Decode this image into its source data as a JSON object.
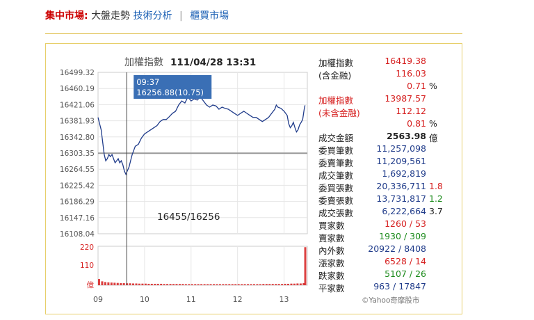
{
  "topbar": {
    "market": "集中市場:",
    "item1": "大盤走勢",
    "item2": "技術分析",
    "sep": "|",
    "item3": "櫃買市場"
  },
  "colors": {
    "red": "#d61f1f",
    "green": "#1a8a1a",
    "blue": "#1f3b8a",
    "line": "#1f3b8a",
    "tooltip": "#3a6fb5"
  },
  "chart_data": {
    "type": "line",
    "title": "加權指數",
    "datetime": "111/04/28 13:31",
    "y_ticks": [
      "16499.32",
      "16460.19",
      "16421.06",
      "16381.93",
      "16342.80",
      "16303.35",
      "16264.55",
      "16225.42",
      "16186.29",
      "16147.16",
      "16108.04"
    ],
    "ylim": [
      16108.04,
      16499.32
    ],
    "reference": 16303.35,
    "x_ticks": [
      "09",
      "10",
      "11",
      "12",
      "13"
    ],
    "volume_ticks": [
      "220",
      "110",
      "億"
    ],
    "volume_max": 220,
    "annotation": "16455/16256",
    "tooltip": {
      "time": "09:37",
      "value": "16256.88(10.75)"
    },
    "cursor_minute": 37,
    "series": [
      {
        "values": [
          [
            0,
            16390
          ],
          [
            2,
            16375
          ],
          [
            4,
            16360
          ],
          [
            6,
            16330
          ],
          [
            8,
            16300
          ],
          [
            10,
            16285
          ],
          [
            12,
            16290
          ],
          [
            14,
            16300
          ],
          [
            16,
            16295
          ],
          [
            18,
            16300
          ],
          [
            20,
            16290
          ],
          [
            22,
            16280
          ],
          [
            24,
            16285
          ],
          [
            26,
            16290
          ],
          [
            28,
            16280
          ],
          [
            30,
            16285
          ],
          [
            32,
            16275
          ],
          [
            34,
            16260
          ],
          [
            36,
            16252
          ],
          [
            37,
            16257
          ],
          [
            40,
            16270
          ],
          [
            42,
            16285
          ],
          [
            44,
            16300
          ],
          [
            46,
            16310
          ],
          [
            48,
            16320
          ],
          [
            52,
            16325
          ],
          [
            56,
            16340
          ],
          [
            60,
            16350
          ],
          [
            64,
            16355
          ],
          [
            68,
            16360
          ],
          [
            72,
            16365
          ],
          [
            76,
            16370
          ],
          [
            80,
            16380
          ],
          [
            84,
            16385
          ],
          [
            88,
            16385
          ],
          [
            92,
            16392
          ],
          [
            96,
            16400
          ],
          [
            100,
            16405
          ],
          [
            104,
            16420
          ],
          [
            108,
            16430
          ],
          [
            112,
            16425
          ],
          [
            116,
            16440
          ],
          [
            120,
            16430
          ],
          [
            124,
            16435
          ],
          [
            128,
            16432
          ],
          [
            132,
            16440
          ],
          [
            136,
            16430
          ],
          [
            140,
            16420
          ],
          [
            144,
            16415
          ],
          [
            148,
            16420
          ],
          [
            152,
            16418
          ],
          [
            156,
            16410
          ],
          [
            160,
            16415
          ],
          [
            164,
            16412
          ],
          [
            168,
            16410
          ],
          [
            172,
            16405
          ],
          [
            176,
            16400
          ],
          [
            180,
            16395
          ],
          [
            184,
            16400
          ],
          [
            188,
            16405
          ],
          [
            192,
            16400
          ],
          [
            196,
            16395
          ],
          [
            200,
            16390
          ],
          [
            204,
            16390
          ],
          [
            208,
            16385
          ],
          [
            212,
            16380
          ],
          [
            216,
            16385
          ],
          [
            220,
            16390
          ],
          [
            224,
            16400
          ],
          [
            228,
            16410
          ],
          [
            230,
            16420
          ],
          [
            232,
            16415
          ],
          [
            236,
            16412
          ],
          [
            240,
            16405
          ],
          [
            244,
            16395
          ],
          [
            246,
            16375
          ],
          [
            248,
            16365
          ],
          [
            250,
            16370
          ],
          [
            252,
            16378
          ],
          [
            254,
            16365
          ],
          [
            256,
            16355
          ],
          [
            258,
            16360
          ],
          [
            260,
            16372
          ],
          [
            262,
            16378
          ],
          [
            264,
            16385
          ],
          [
            266,
            16410
          ],
          [
            267,
            16419.38
          ]
        ]
      }
    ],
    "volume": [
      [
        0,
        35
      ],
      [
        4,
        22
      ],
      [
        8,
        18
      ],
      [
        12,
        16
      ],
      [
        16,
        15
      ],
      [
        20,
        14
      ],
      [
        24,
        13
      ],
      [
        28,
        12
      ],
      [
        32,
        12
      ],
      [
        36,
        11
      ],
      [
        40,
        11
      ],
      [
        44,
        10
      ],
      [
        48,
        10
      ],
      [
        52,
        9
      ],
      [
        56,
        9
      ],
      [
        60,
        9
      ],
      [
        64,
        8
      ],
      [
        68,
        8
      ],
      [
        72,
        8
      ],
      [
        76,
        8
      ],
      [
        80,
        8
      ],
      [
        84,
        7
      ],
      [
        88,
        7
      ],
      [
        92,
        7
      ],
      [
        96,
        7
      ],
      [
        100,
        7
      ],
      [
        104,
        7
      ],
      [
        108,
        7
      ],
      [
        112,
        6
      ],
      [
        116,
        6
      ],
      [
        120,
        6
      ],
      [
        124,
        6
      ],
      [
        128,
        6
      ],
      [
        132,
        6
      ],
      [
        136,
        6
      ],
      [
        140,
        6
      ],
      [
        144,
        6
      ],
      [
        148,
        6
      ],
      [
        152,
        6
      ],
      [
        156,
        6
      ],
      [
        160,
        6
      ],
      [
        164,
        6
      ],
      [
        168,
        6
      ],
      [
        172,
        6
      ],
      [
        176,
        6
      ],
      [
        180,
        6
      ],
      [
        184,
        6
      ],
      [
        188,
        6
      ],
      [
        192,
        6
      ],
      [
        196,
        6
      ],
      [
        200,
        6
      ],
      [
        204,
        6
      ],
      [
        208,
        6
      ],
      [
        212,
        7
      ],
      [
        216,
        7
      ],
      [
        220,
        7
      ],
      [
        224,
        7
      ],
      [
        228,
        7
      ],
      [
        232,
        7
      ],
      [
        236,
        7
      ],
      [
        240,
        8
      ],
      [
        244,
        8
      ],
      [
        248,
        9
      ],
      [
        252,
        9
      ],
      [
        256,
        10
      ],
      [
        260,
        10
      ],
      [
        264,
        12
      ],
      [
        266,
        215
      ]
    ]
  },
  "stats": [
    {
      "label": "加權指數",
      "value": "16419.38",
      "color": "red"
    },
    {
      "label": "(含金融)",
      "value": "116.03",
      "color": "red"
    },
    {
      "label": "",
      "value": "0.71",
      "color": "red",
      "suffix": "%"
    },
    {
      "label": "加權指數",
      "value": "13987.57",
      "color": "red",
      "label_color": "red"
    },
    {
      "label": "(未含金融)",
      "value": "112.12",
      "color": "red",
      "label_color": "red"
    },
    {
      "label": "",
      "value": "0.81",
      "color": "red",
      "suffix": "%"
    },
    {
      "label": "成交金額",
      "value": "2563.98",
      "color": "dark",
      "bold": true,
      "suffix": "億"
    },
    {
      "label": "委買筆數",
      "value": "11,257,098",
      "color": "blue"
    },
    {
      "label": "委賣筆數",
      "value": "11,209,561",
      "color": "blue"
    },
    {
      "label": "成交筆數",
      "value": "1,692,819",
      "color": "blue"
    },
    {
      "label": "委買張數",
      "value": "20,336,711",
      "color": "blue",
      "extra": "1.8",
      "extra_color": "red"
    },
    {
      "label": "委賣張數",
      "value": "13,731,817",
      "color": "blue",
      "extra": "1.2",
      "extra_color": "green"
    },
    {
      "label": "成交張數",
      "value": "6,222,664",
      "color": "blue",
      "extra": "3.7",
      "extra_color": "dark"
    },
    {
      "label": "買家數",
      "value": "1260 / 53",
      "color": "red"
    },
    {
      "label": "賣家數",
      "value": "1930 / 309",
      "color": "green"
    },
    {
      "label": "內外數",
      "value": "20922 / 8408",
      "color": "blue"
    },
    {
      "label": "漲家數",
      "value": "6528 / 14",
      "color": "red"
    },
    {
      "label": "跌家數",
      "value": "5107 / 26",
      "color": "green"
    },
    {
      "label": "平家數",
      "value": "963 / 17847",
      "color": "blue"
    }
  ],
  "footer": "©Yahoo奇摩股市"
}
